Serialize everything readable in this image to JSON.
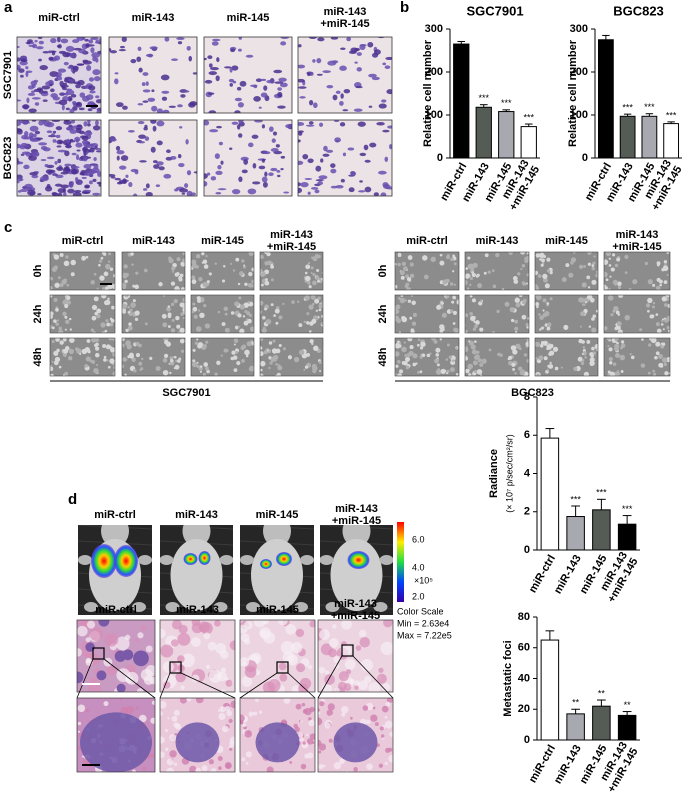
{
  "panel_labels": [
    "a",
    "b",
    "c",
    "d"
  ],
  "panel_a": {
    "columns": [
      "miR-ctrl",
      "miR-143",
      "miR-145",
      "miR-143\n+miR-145"
    ],
    "rows": [
      "SGC7901",
      "BGC823"
    ]
  },
  "panel_c": {
    "columns": [
      "miR-ctrl",
      "miR-143",
      "miR-145",
      "miR-143\n+miR-145"
    ],
    "rows": [
      "0h",
      "24h",
      "48h"
    ],
    "cell_lines": [
      "SGC7901",
      "BGC823"
    ]
  },
  "panel_d": {
    "columns": [
      "miR-ctrl",
      "miR-143",
      "miR-145",
      "miR-143\n+miR-145"
    ],
    "color_scale": {
      "ticks": [
        "6.0",
        "4.0",
        "2.0"
      ],
      "exponent": "×10⁵",
      "title": "Color Scale",
      "min": "Min = 2.63e4",
      "max": "Max = 7.22e5"
    }
  },
  "chart_data": [
    {
      "type": "bar",
      "title": "SGC7901",
      "ylabel": "Relative cell number",
      "categories": [
        "miR-ctrl",
        "miR-143",
        "miR-145",
        "miR-143\n+miR-145"
      ],
      "values": [
        265,
        118,
        108,
        73
      ],
      "errors": [
        6,
        6,
        4,
        6
      ],
      "colors": [
        "#000000",
        "#555b55",
        "#a8a8b0",
        "#ffffff"
      ],
      "annotations": [
        null,
        "***",
        "***",
        "***"
      ],
      "ylim": [
        0,
        300
      ],
      "yticks": [
        0,
        100,
        200,
        300
      ]
    },
    {
      "type": "bar",
      "title": "BGC823",
      "ylabel": "Relative cell number",
      "categories": [
        "miR-ctrl",
        "miR-143",
        "miR-145",
        "miR-143\n+miR-145"
      ],
      "values": [
        275,
        97,
        97,
        80
      ],
      "errors": [
        10,
        5,
        6,
        4
      ],
      "colors": [
        "#000000",
        "#555b55",
        "#a8a8b0",
        "#ffffff"
      ],
      "annotations": [
        null,
        "***",
        "***",
        "***"
      ],
      "ylim": [
        0,
        300
      ],
      "yticks": [
        0,
        100,
        200,
        300
      ]
    },
    {
      "type": "bar",
      "ylabel": "Radiance",
      "ylabel_unit": "(× 10⁷ p/sec/cm²/sr)",
      "categories": [
        "miR-ctrl",
        "miR-143",
        "miR-145",
        "miR-143\n+miR-145"
      ],
      "values": [
        5.85,
        1.75,
        2.1,
        1.35
      ],
      "errors": [
        0.5,
        0.55,
        0.55,
        0.45
      ],
      "colors": [
        "#ffffff",
        "#a8a8b0",
        "#555b55",
        "#000000"
      ],
      "annotations": [
        null,
        "***",
        "***",
        "***"
      ],
      "ylim": [
        0,
        8
      ],
      "yticks": [
        0,
        2,
        4,
        6,
        8
      ]
    },
    {
      "type": "bar",
      "ylabel": "Metastatic foci",
      "categories": [
        "miR-ctrl",
        "miR-143",
        "miR-145",
        "miR-143\n+miR-145"
      ],
      "values": [
        65,
        17,
        22,
        16
      ],
      "errors": [
        6,
        3,
        4,
        2.5
      ],
      "colors": [
        "#ffffff",
        "#a8a8b0",
        "#555b55",
        "#000000"
      ],
      "annotations": [
        null,
        "**",
        "**",
        "**"
      ],
      "ylim": [
        0,
        80
      ],
      "yticks": [
        0,
        20,
        40,
        60,
        80
      ]
    }
  ]
}
